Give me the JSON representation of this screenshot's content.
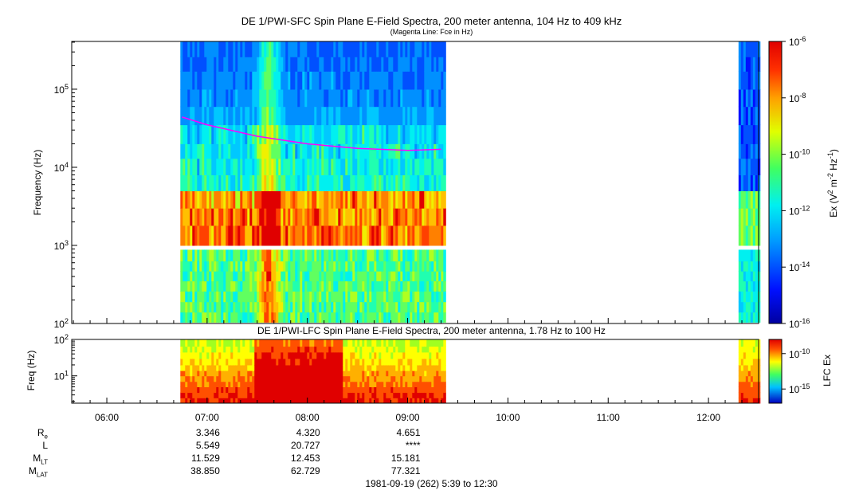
{
  "chart_data": [
    {
      "type": "heatmap",
      "title": "DE 1/PWI-SFC  Spin Plane E-Field Spectra, 200 meter antenna, 104 Hz to 409 kHz",
      "subtitle": "(Magenta Line: Fce in Hz)",
      "ylabel": "Frequency (Hz)",
      "yscale": "log",
      "ylim": [
        100,
        409000
      ],
      "yticks": [
        "10^2",
        "10^3",
        "10^4",
        "10^5"
      ],
      "colorbar_label": "Ex (V^2 m^-2 Hz^-1)",
      "colorbar_ticks": [
        "10^-6",
        "10^-8",
        "10^-10",
        "10^-12",
        "10^-14",
        "10^-16"
      ],
      "colorbar_range": [
        1e-16,
        1e-06
      ],
      "data_intervals_ut": [
        [
          "06:44",
          "09:22"
        ],
        [
          "12:18",
          "12:30"
        ]
      ],
      "fce_line": {
        "name": "Fce",
        "times": [
          "06:45",
          "07:00",
          "07:30",
          "08:00",
          "08:30",
          "09:00",
          "09:20"
        ],
        "values": [
          44000,
          35000,
          25000,
          20000,
          17500,
          16500,
          17000
        ]
      }
    },
    {
      "type": "heatmap",
      "title": "DE 1/PWI-LFC  Spin Plane E-Field Spectra, 200 meter antenna, 1.78 Hz to 100 Hz",
      "ylabel": "Freq (Hz)",
      "yscale": "log",
      "ylim": [
        1.78,
        100
      ],
      "yticks": [
        "10^1",
        "10^2"
      ],
      "colorbar_label": "LFC Ex",
      "colorbar_ticks": [
        "10^-10",
        "10^-15"
      ],
      "data_intervals_ut": [
        [
          "06:44",
          "09:22"
        ],
        [
          "12:18",
          "12:30"
        ]
      ]
    }
  ],
  "xaxis": {
    "ticks": [
      "06:00",
      "07:00",
      "08:00",
      "09:00",
      "10:00",
      "11:00",
      "12:00"
    ],
    "range": [
      "05:39",
      "12:30"
    ]
  },
  "ephemeris": {
    "labels": [
      "R",
      "L",
      "M",
      "M"
    ],
    "label_subs": [
      "e",
      "",
      "LT",
      "LAT"
    ],
    "rows": [
      [
        "3.346",
        "4.320",
        "4.651"
      ],
      [
        "5.549",
        "20.727",
        "****"
      ],
      [
        "11.529",
        "12.453",
        "15.181"
      ],
      [
        "38.850",
        "62.729",
        "77.321"
      ]
    ]
  },
  "footer": "1981-09-19 (262) 5:39 to 12:30"
}
